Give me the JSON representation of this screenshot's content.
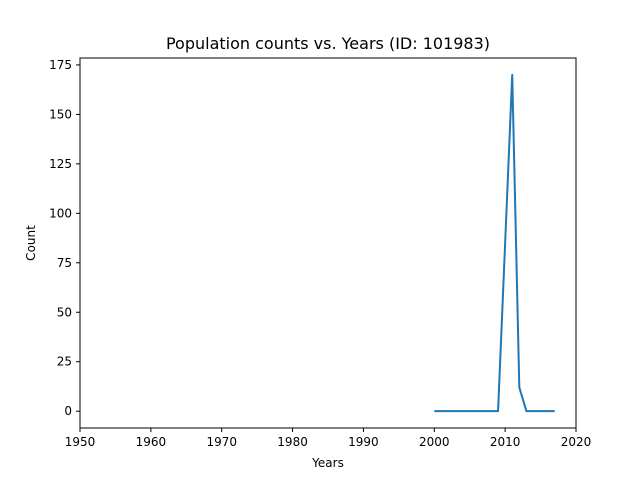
{
  "chart_data": {
    "type": "line",
    "title": "Population counts vs. Years (ID: 101983)",
    "xlabel": "Years",
    "ylabel": "Count",
    "xlim": [
      1950,
      2020
    ],
    "ylim": [
      -8.5,
      178.5
    ],
    "x_ticks": [
      1950,
      1960,
      1970,
      1980,
      1990,
      2000,
      2010,
      2020
    ],
    "y_ticks": [
      0,
      25,
      50,
      75,
      100,
      125,
      150,
      175
    ],
    "grid": false,
    "legend": "none",
    "series": [
      {
        "color": "#1f77b4",
        "x": [
          2000,
          2001,
          2002,
          2003,
          2004,
          2005,
          2006,
          2007,
          2008,
          2009,
          2010,
          2011,
          2012,
          2013,
          2014,
          2015,
          2016,
          2017
        ],
        "y": [
          0,
          0,
          0,
          0,
          0,
          0,
          0,
          0,
          0,
          0,
          85,
          170,
          12,
          0,
          0,
          0,
          0,
          0
        ]
      }
    ]
  }
}
